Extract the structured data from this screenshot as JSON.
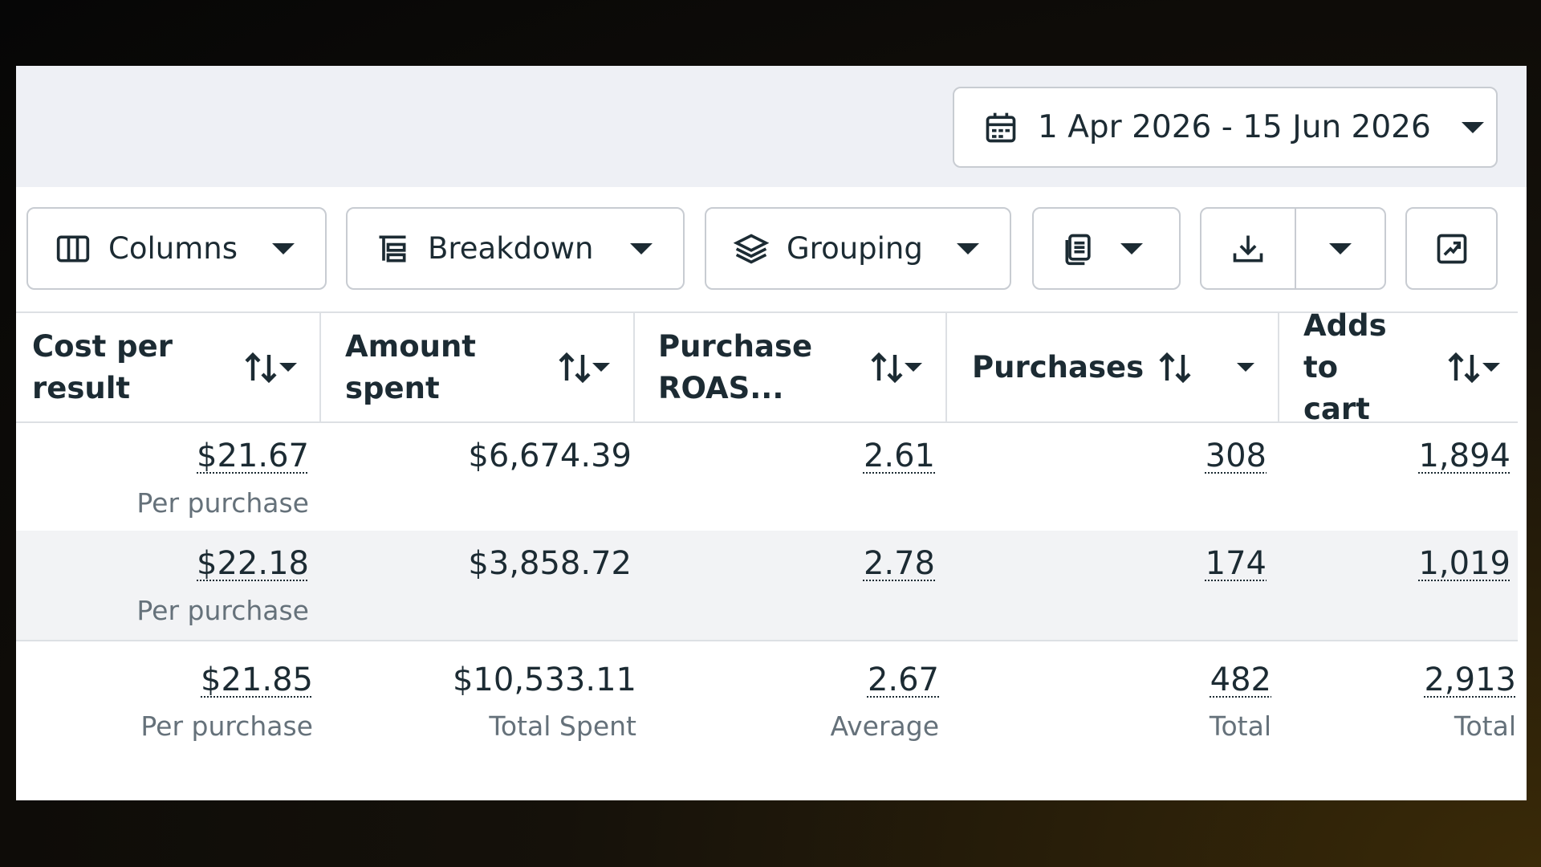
{
  "header": {
    "date_range": "1 Apr 2026 - 15 Jun 2026"
  },
  "toolbar": {
    "buttons": [
      "Columns",
      "Breakdown",
      "Grouping"
    ]
  },
  "table": {
    "columns": [
      "Cost per result",
      "Amount spent",
      "Purchase ROAS...",
      "Purchases",
      "Adds to cart"
    ],
    "rows": [
      [
        {
          "value": "$21.67",
          "note": "Per purchase"
        },
        {
          "value": "$6,674.39"
        },
        {
          "value": "2.61"
        },
        {
          "value": "308"
        },
        {
          "value": "1,894"
        }
      ],
      [
        {
          "value": "$22.18",
          "note": "Per purchase"
        },
        {
          "value": "$3,858.72"
        },
        {
          "value": "2.78"
        },
        {
          "value": "174"
        },
        {
          "value": "1,019"
        }
      ]
    ],
    "summary": [
      {
        "value": "$21.85",
        "note": "Per purchase"
      },
      {
        "value": "$10,533.11",
        "note": "Total Spent"
      },
      {
        "value": "2.67",
        "note": "Average"
      },
      {
        "value": "482",
        "note": "Total"
      },
      {
        "value": "2,913",
        "note": "Total"
      }
    ]
  }
}
